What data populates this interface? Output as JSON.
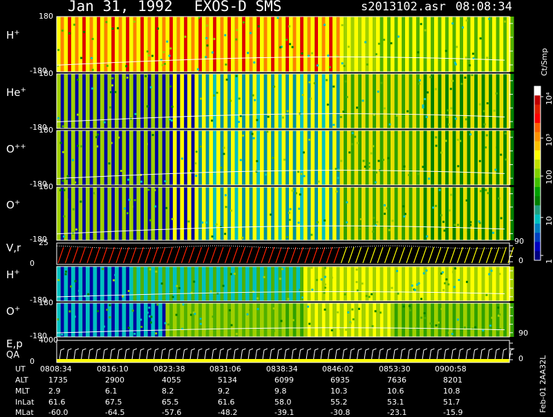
{
  "header": {
    "date": "Jan 31, 1992",
    "instrument": "EXOS-D SMS",
    "file": "s2013102.asr",
    "time": "08:08:34"
  },
  "panels": [
    {
      "label": "H",
      "sup": "+",
      "ymax": "180",
      "ymin": "-180",
      "kind": "h1"
    },
    {
      "label": "He",
      "sup": "+",
      "ymax": "180",
      "ymin": "-180",
      "kind": "he"
    },
    {
      "label": "O",
      "sup": "++",
      "ymax": "180",
      "ymin": "-180",
      "kind": "opp"
    },
    {
      "label": "O",
      "sup": "+",
      "ymax": "180",
      "ymin": "-180",
      "kind": "op"
    },
    {
      "label": "V,r",
      "sup": "",
      "ymax": "25",
      "ymin": "0",
      "right_top": "90",
      "right_bot": "0",
      "kind": "vr"
    },
    {
      "label": "H",
      "sup": "+",
      "ymax": "",
      "ymin": "-180",
      "kind": "h2"
    },
    {
      "label": "O",
      "sup": "+",
      "ymax": "180",
      "ymin": "-180",
      "right_bot": "90",
      "kind": "o2"
    },
    {
      "label": "E,p",
      "label2": "QA",
      "sup": "",
      "ymax": "4000",
      "ymin": "0",
      "right_bot": "0",
      "kind": "ep"
    }
  ],
  "colorbar": {
    "unit": "Ct/Smp",
    "ticks": [
      "10⁴",
      "10³",
      "100",
      "10",
      "1"
    ],
    "colors": [
      "#ffffff",
      "#c00000",
      "#e02000",
      "#ff0000",
      "#ff6000",
      "#ff9000",
      "#ffc000",
      "#ffff00",
      "#c0e000",
      "#80d000",
      "#40c000",
      "#00a000",
      "#008000",
      "#20a080",
      "#00c0c0",
      "#0080c0",
      "#0040c0",
      "#0000c0",
      "#000080"
    ]
  },
  "footer": {
    "row_labels": [
      "UT",
      "ALT",
      "MLT",
      "InLat",
      "MLat"
    ],
    "columns": [
      [
        "0808:34",
        "1735",
        "2.9",
        "61.6",
        "-60.0"
      ],
      [
        "0816:10",
        "2900",
        "6.1",
        "67.5",
        "-64.5"
      ],
      [
        "0823:38",
        "4055",
        "8.2",
        "65.5",
        "-57.6"
      ],
      [
        "0831:06",
        "5134",
        "9.2",
        "61.6",
        "-48.2"
      ],
      [
        "0838:34",
        "6099",
        "9.8",
        "58.0",
        "-39.1"
      ],
      [
        "0846:02",
        "6935",
        "10.3",
        "55.2",
        "-30.8"
      ],
      [
        "0853:30",
        "7636",
        "10.6",
        "53.1",
        "-23.1"
      ],
      [
        "0900:58",
        "8201",
        "10.8",
        "51.7",
        "-15.9"
      ]
    ],
    "stamp": "Feb-01 2AA32L"
  },
  "chart_data": {
    "type": "heatmap",
    "title": "Jan 31, 1992   EXOS-D SMS",
    "xlabel": "UT",
    "x": [
      "0808:34",
      "0816:10",
      "0823:38",
      "0831:06",
      "0838:34",
      "0846:02",
      "0853:30",
      "0900:58"
    ],
    "series": [
      {
        "name": "H+",
        "ylim": [
          -180,
          180
        ]
      },
      {
        "name": "He+",
        "ylim": [
          -180,
          180
        ]
      },
      {
        "name": "O++",
        "ylim": [
          -180,
          180
        ]
      },
      {
        "name": "O+",
        "ylim": [
          -180,
          180
        ]
      },
      {
        "name": "V,r",
        "ylim": [
          0,
          25
        ]
      },
      {
        "name": "H+",
        "ylim": [
          -180,
          180
        ]
      },
      {
        "name": "O+",
        "ylim": [
          -180,
          180
        ]
      },
      {
        "name": "E,p",
        "ylim": [
          0,
          4000
        ]
      }
    ],
    "colorscale": {
      "unit": "Ct/Smp",
      "ticks": [
        "1",
        "10",
        "100",
        "10³",
        "10⁴"
      ]
    }
  }
}
